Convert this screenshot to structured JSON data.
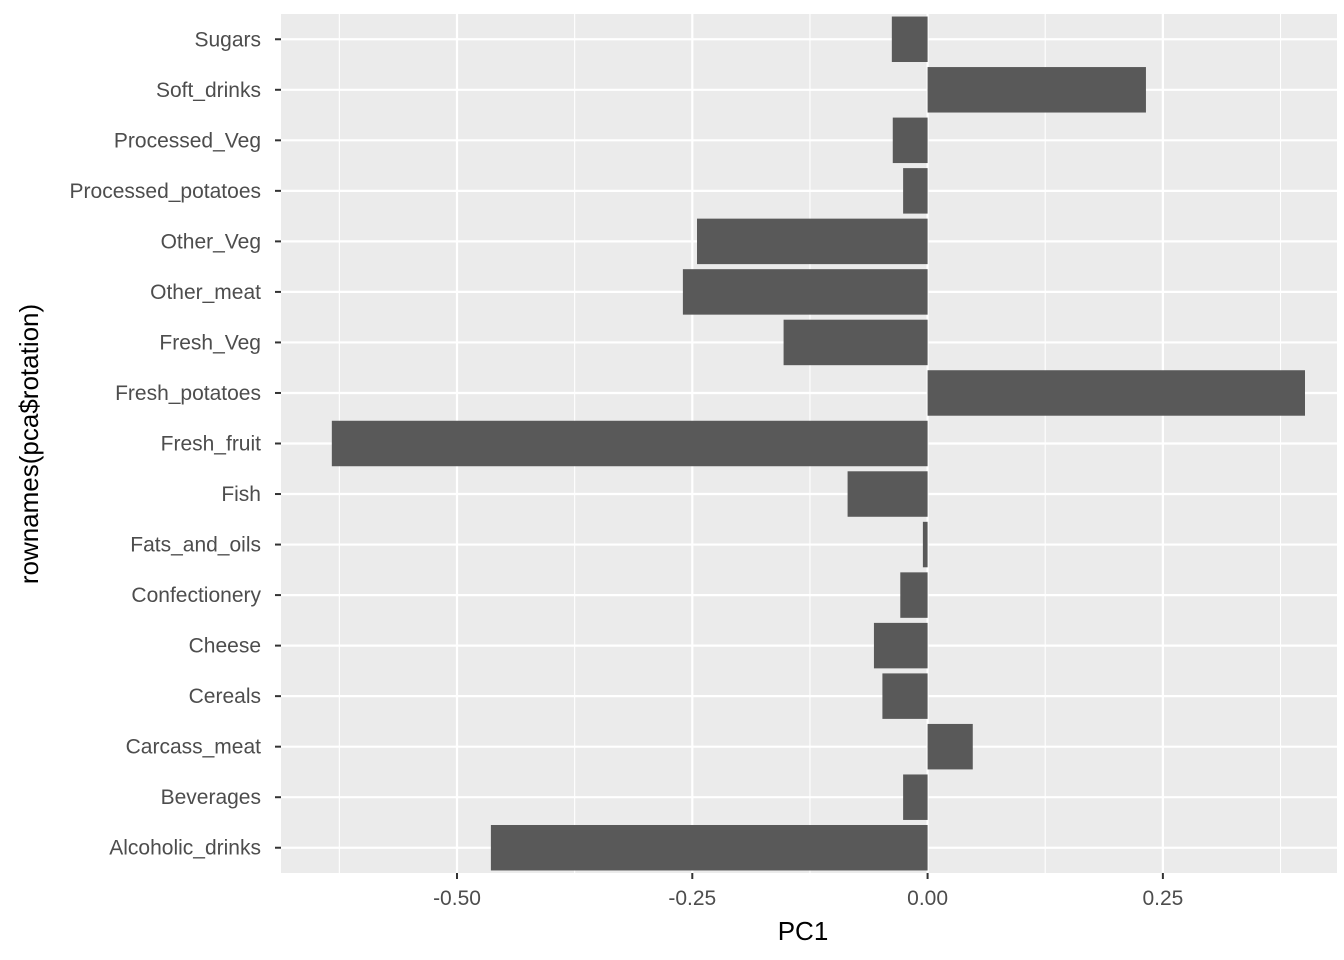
{
  "chart_data": {
    "type": "bar",
    "orientation": "horizontal",
    "xlabel": "PC1",
    "ylabel": "rownames(pca$rotation)",
    "xlim": [
      -0.687,
      0.435
    ],
    "xticks": [
      -0.5,
      -0.25,
      0.0,
      0.25
    ],
    "xtick_labels": [
      "-0.50",
      "-0.25",
      "0.00",
      "0.25"
    ],
    "grid": true,
    "categories": [
      "Sugars",
      "Soft_drinks",
      "Processed_Veg",
      "Processed_potatoes",
      "Other_Veg",
      "Other_meat",
      "Fresh_Veg",
      "Fresh_potatoes",
      "Fresh_fruit",
      "Fish",
      "Fats_and_oils",
      "Confectionery",
      "Cheese",
      "Cereals",
      "Carcass_meat",
      "Beverages",
      "Alcoholic_drinks"
    ],
    "values": [
      -0.038,
      0.232,
      -0.037,
      -0.026,
      -0.245,
      -0.26,
      -0.153,
      0.401,
      -0.633,
      -0.085,
      -0.005,
      -0.029,
      -0.057,
      -0.048,
      0.048,
      -0.026,
      -0.464
    ],
    "colors": {
      "panel": "#EBEBEB",
      "grid_major": "#FFFFFF",
      "bar": "#595959"
    }
  }
}
